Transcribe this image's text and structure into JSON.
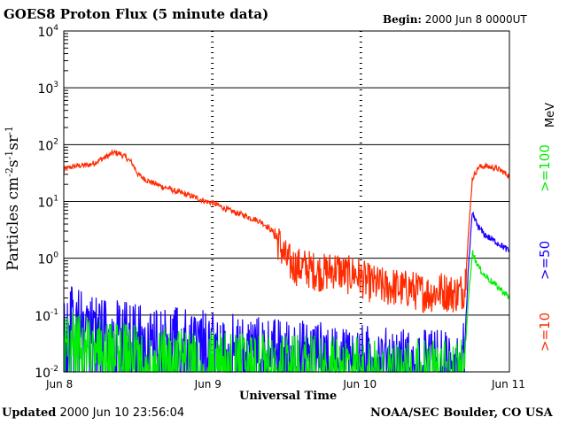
{
  "header": {
    "title": "GOES8 Proton Flux (5 minute data)",
    "begin_label": "Begin:",
    "begin_value": "2000 Jun 8 0000UT"
  },
  "footer": {
    "updated_label": "Updated",
    "updated_value": "2000 Jun 10 23:56:04",
    "credit": "NOAA/SEC Boulder, CO USA"
  },
  "chart_data": {
    "type": "line",
    "title": "GOES8 Proton Flux (5 minute data)",
    "xlabel": "Universal Time",
    "ylabel": "Particles cm-2s-1sr-1",
    "yscale": "log",
    "ylim": [
      0.01,
      10000
    ],
    "xlim": [
      0,
      72
    ],
    "x_unit": "hours since 2000 Jun 8 0000UT",
    "x_ticks": [
      {
        "x": 0,
        "label": "Jun 8"
      },
      {
        "x": 24,
        "label": "Jun 9"
      },
      {
        "x": 48,
        "label": "Jun 10"
      },
      {
        "x": 72,
        "label": "Jun 11"
      }
    ],
    "y_ticks": [
      {
        "value": 0.01,
        "base": "10",
        "exp": "-2"
      },
      {
        "value": 0.1,
        "base": "10",
        "exp": "-1"
      },
      {
        "value": 1,
        "base": "10",
        "exp": "0"
      },
      {
        "value": 10,
        "base": "10",
        "exp": "1"
      },
      {
        "value": 100,
        "base": "10",
        "exp": "2"
      },
      {
        "value": 1000,
        "base": "10",
        "exp": "3"
      },
      {
        "value": 10000,
        "base": "10",
        "exp": "4"
      }
    ],
    "legend_unit": "MeV",
    "legend_position": "right",
    "series": [
      {
        "name": ">=10",
        "color": "#ff2a00",
        "x": [
          0,
          1,
          2,
          3,
          4,
          5,
          6,
          7,
          8,
          9,
          10,
          11,
          12,
          13,
          14,
          15,
          16,
          17,
          18,
          19,
          20,
          21,
          22,
          23,
          24,
          25,
          26,
          27,
          28,
          29,
          30,
          31,
          32,
          33,
          34,
          35,
          36,
          37,
          38,
          39,
          40,
          41,
          42,
          43,
          44,
          45,
          46,
          47,
          48,
          49,
          50,
          51,
          52,
          53,
          54,
          55,
          56,
          57,
          58,
          59,
          60,
          61,
          62,
          63,
          64,
          64.8,
          65.3,
          66,
          67,
          68,
          69,
          70,
          71,
          72
        ],
        "values": [
          35,
          40,
          42,
          43,
          44,
          48,
          55,
          62,
          72,
          70,
          60,
          48,
          30,
          25,
          22,
          20,
          18,
          17,
          15,
          14,
          13,
          12,
          11,
          10,
          9.5,
          8.5,
          7.5,
          6.8,
          6.2,
          5.8,
          5.2,
          4.8,
          4.3,
          3.5,
          2.8,
          1.6,
          0.9,
          0.75,
          0.7,
          0.68,
          0.62,
          0.58,
          0.55,
          0.6,
          0.65,
          0.55,
          0.5,
          0.55,
          0.45,
          0.38,
          0.35,
          0.33,
          0.3,
          0.32,
          0.3,
          0.28,
          0.3,
          0.26,
          0.25,
          0.24,
          0.25,
          0.27,
          0.25,
          0.24,
          0.25,
          0.3,
          2.0,
          25,
          40,
          42,
          40,
          38,
          33,
          28
        ]
      },
      {
        "name": ">=50",
        "color": "#1a00ff",
        "x": [
          0,
          2,
          4,
          6,
          8,
          10,
          12,
          14,
          16,
          18,
          20,
          22,
          24,
          26,
          28,
          30,
          32,
          34,
          36,
          38,
          40,
          42,
          44,
          46,
          48,
          50,
          52,
          54,
          56,
          58,
          60,
          62,
          64,
          64.8,
          65.3,
          66,
          67,
          68,
          69,
          70,
          71,
          72
        ],
        "values": [
          0.12,
          0.11,
          0.09,
          0.08,
          0.07,
          0.065,
          0.06,
          0.055,
          0.05,
          0.05,
          0.045,
          0.045,
          0.04,
          0.04,
          0.038,
          0.035,
          0.035,
          0.032,
          0.03,
          0.03,
          0.028,
          0.028,
          0.025,
          0.025,
          0.025,
          0.023,
          0.022,
          0.022,
          0.022,
          0.021,
          0.021,
          0.02,
          0.02,
          0.03,
          0.5,
          6.0,
          3.5,
          2.6,
          2.2,
          1.9,
          1.6,
          1.3
        ]
      },
      {
        "name": ">=100",
        "color": "#00ee00",
        "x": [
          0,
          2,
          4,
          6,
          8,
          10,
          12,
          14,
          16,
          18,
          20,
          22,
          24,
          26,
          28,
          30,
          32,
          34,
          36,
          38,
          40,
          42,
          44,
          46,
          48,
          50,
          52,
          54,
          56,
          58,
          60,
          62,
          64,
          64.8,
          65.3,
          66,
          67,
          68,
          69,
          70,
          71,
          72
        ],
        "values": [
          0.045,
          0.04,
          0.035,
          0.032,
          0.028,
          0.026,
          0.025,
          0.023,
          0.022,
          0.021,
          0.02,
          0.02,
          0.019,
          0.019,
          0.018,
          0.018,
          0.017,
          0.017,
          0.016,
          0.016,
          0.016,
          0.015,
          0.015,
          0.015,
          0.015,
          0.014,
          0.014,
          0.014,
          0.014,
          0.014,
          0.014,
          0.014,
          0.014,
          0.02,
          0.15,
          1.3,
          0.7,
          0.5,
          0.4,
          0.32,
          0.26,
          0.2
        ]
      }
    ],
    "grid": true
  }
}
